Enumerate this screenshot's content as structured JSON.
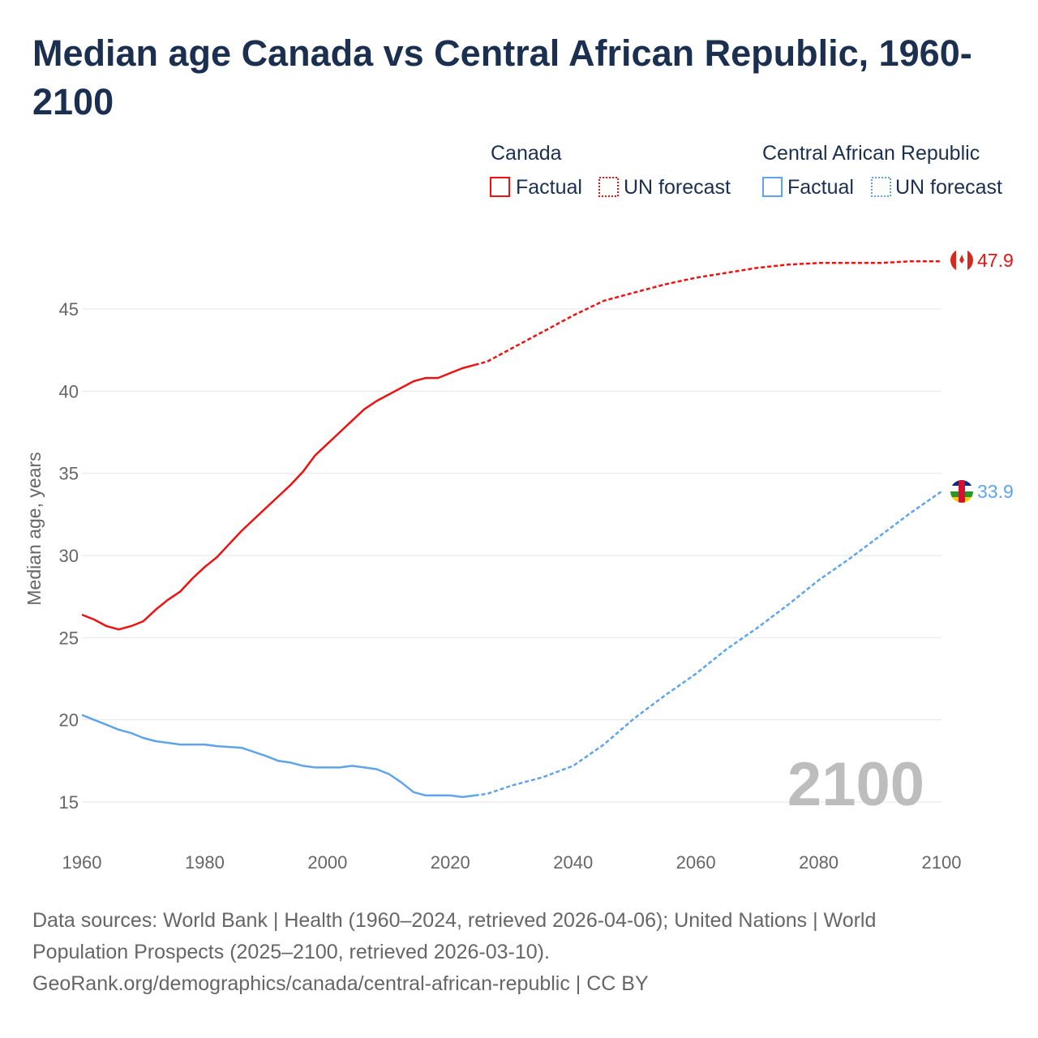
{
  "chart_data": {
    "type": "line",
    "title": "Median age Canada vs Central African Republic, 1960-2100",
    "ylabel": "Median age, years",
    "xlabel": "",
    "xlim": [
      1960,
      2100
    ],
    "ylim": [
      15,
      45
    ],
    "x_ticks": [
      "1960",
      "1980",
      "2000",
      "2020",
      "2040",
      "2060",
      "2080",
      "2100"
    ],
    "y_ticks": [
      "15",
      "20",
      "25",
      "30",
      "35",
      "40",
      "45"
    ],
    "grid": true,
    "current_year_label": "2100",
    "legend": {
      "groups": [
        {
          "name": "Canada",
          "items": [
            "Factual",
            "UN forecast"
          ]
        },
        {
          "name": "Central African Republic",
          "items": [
            "Factual",
            "UN forecast"
          ]
        }
      ],
      "placement": "top-right"
    },
    "series": [
      {
        "name": "Canada",
        "color": "#ee1111",
        "end_label": "47.9",
        "factual": {
          "x": [
            1960,
            1962,
            1964,
            1966,
            1968,
            1970,
            1972,
            1974,
            1976,
            1978,
            1980,
            1982,
            1984,
            1986,
            1988,
            1990,
            1992,
            1994,
            1996,
            1998,
            2000,
            2002,
            2004,
            2006,
            2008,
            2010,
            2012,
            2014,
            2016,
            2018,
            2020,
            2022,
            2024
          ],
          "y": [
            26.4,
            26.1,
            25.7,
            25.5,
            25.7,
            26.0,
            26.7,
            27.3,
            27.8,
            28.6,
            29.3,
            29.9,
            30.7,
            31.5,
            32.2,
            32.9,
            33.6,
            34.3,
            35.1,
            36.1,
            36.8,
            37.5,
            38.2,
            38.9,
            39.4,
            39.8,
            40.2,
            40.6,
            40.8,
            40.8,
            41.1,
            41.4,
            41.6
          ]
        },
        "forecast": {
          "x": [
            2024,
            2026,
            2030,
            2035,
            2040,
            2045,
            2050,
            2055,
            2060,
            2065,
            2070,
            2075,
            2080,
            2090,
            2095,
            2100
          ],
          "y": [
            41.6,
            41.8,
            42.6,
            43.6,
            44.6,
            45.5,
            46.0,
            46.5,
            46.9,
            47.2,
            47.5,
            47.7,
            47.8,
            47.8,
            47.9,
            47.9
          ]
        }
      },
      {
        "name": "Central African Republic",
        "color": "#5fa4ea",
        "end_label": "33.9",
        "factual": {
          "x": [
            1960,
            1962,
            1964,
            1966,
            1968,
            1970,
            1972,
            1974,
            1976,
            1980,
            1982,
            1986,
            1990,
            1992,
            1994,
            1996,
            1998,
            2002,
            2004,
            2006,
            2008,
            2010,
            2012,
            2014,
            2016,
            2020,
            2022,
            2024
          ],
          "y": [
            20.3,
            20.0,
            19.7,
            19.4,
            19.2,
            18.9,
            18.7,
            18.6,
            18.5,
            18.5,
            18.4,
            18.3,
            17.8,
            17.5,
            17.4,
            17.2,
            17.1,
            17.1,
            17.2,
            17.1,
            17.0,
            16.7,
            16.2,
            15.6,
            15.4,
            15.4,
            15.3,
            15.4
          ]
        },
        "forecast": {
          "x": [
            2024,
            2026,
            2030,
            2035,
            2040,
            2045,
            2050,
            2055,
            2060,
            2065,
            2070,
            2075,
            2080,
            2085,
            2090,
            2095,
            2100
          ],
          "y": [
            15.4,
            15.5,
            16.0,
            16.5,
            17.2,
            18.5,
            20.1,
            21.5,
            22.8,
            24.3,
            25.6,
            27.0,
            28.5,
            29.8,
            31.2,
            32.6,
            33.9
          ]
        }
      }
    ]
  },
  "footer": {
    "line1": "Data sources: World Bank | Health (1960–2024, retrieved 2026-04-06); United Nations | World",
    "line2": "Population Prospects (2025–2100, retrieved 2026-03-10).",
    "line3": "GeoRank.org/demographics/canada/central-african-republic | CC BY"
  }
}
